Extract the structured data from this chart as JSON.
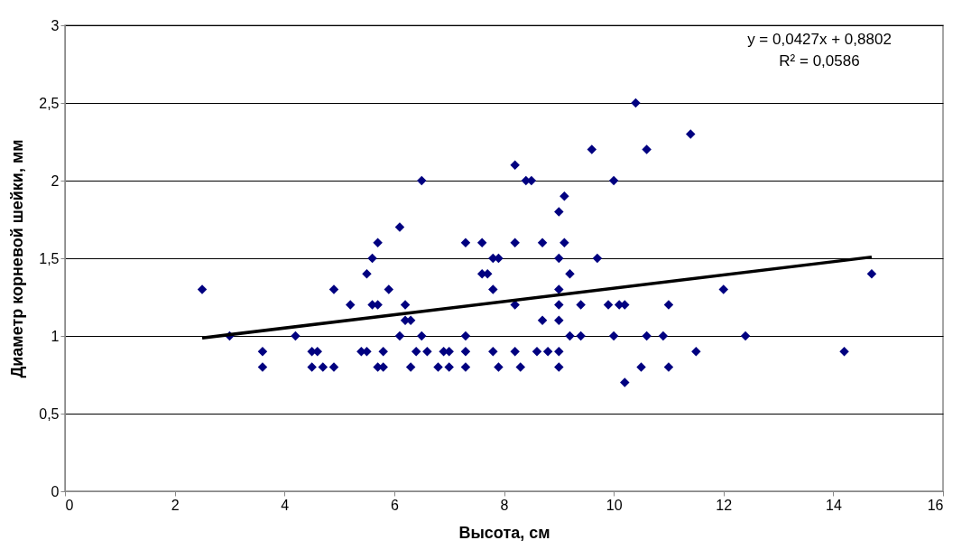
{
  "chart_data": {
    "type": "scatter",
    "xlabel": "Высота, см",
    "ylabel": "Диаметр корневой шейки, мм",
    "xlim": [
      0,
      16
    ],
    "xticks": [
      0,
      2,
      4,
      6,
      8,
      10,
      12,
      14,
      16
    ],
    "ylim": [
      0,
      3
    ],
    "yticks": [
      0,
      {
        "value": 0.5,
        "label": "0,5"
      },
      1,
      {
        "value": 1.5,
        "label": "1,5"
      },
      2,
      {
        "value": 2.5,
        "label": "2,5"
      },
      3
    ],
    "grid": "y",
    "annotations": [
      "y = 0,0427x + 0,8802",
      "R² = 0,0586"
    ],
    "series": [
      {
        "color": "#000080",
        "marker": "diamond",
        "x": [
          2.5,
          3.0,
          3.6,
          3.6,
          4.2,
          4.5,
          4.6,
          4.5,
          4.7,
          4.9,
          4.9,
          5.2,
          5.4,
          5.5,
          5.5,
          5.6,
          5.6,
          5.7,
          5.7,
          5.7,
          5.8,
          5.8,
          5.9,
          6.1,
          6.1,
          6.2,
          6.2,
          6.3,
          6.3,
          6.4,
          6.5,
          6.5,
          6.6,
          6.8,
          6.9,
          7.0,
          7.0,
          7.3,
          7.3,
          7.3,
          7.3,
          7.6,
          7.6,
          7.7,
          7.8,
          7.8,
          7.8,
          7.9,
          7.9,
          8.2,
          8.2,
          8.2,
          8.2,
          8.3,
          8.4,
          8.5,
          8.6,
          8.7,
          8.7,
          8.8,
          9.0,
          9.0,
          9.0,
          9.0,
          9.0,
          9.0,
          9.0,
          9.1,
          9.1,
          9.2,
          9.2,
          9.4,
          9.4,
          9.6,
          9.7,
          9.9,
          10.0,
          10.0,
          10.1,
          10.2,
          10.2,
          10.4,
          10.5,
          10.6,
          10.6,
          10.9,
          11.0,
          11.0,
          11.4,
          11.5,
          12.0,
          12.4,
          14.2,
          14.7
        ],
        "values": [
          1.3,
          1.0,
          0.9,
          0.8,
          1.0,
          0.9,
          0.9,
          0.8,
          0.8,
          0.8,
          1.3,
          1.2,
          0.9,
          0.9,
          1.4,
          1.5,
          1.2,
          1.6,
          1.2,
          0.8,
          0.9,
          0.8,
          1.3,
          1.7,
          1.0,
          1.2,
          1.1,
          1.1,
          0.8,
          0.9,
          2.0,
          1.0,
          0.9,
          0.8,
          0.9,
          0.9,
          0.8,
          1.6,
          1.0,
          0.9,
          0.8,
          1.6,
          1.4,
          1.4,
          1.5,
          1.3,
          0.9,
          1.5,
          0.8,
          2.1,
          1.6,
          1.2,
          0.9,
          0.8,
          2.0,
          2.0,
          0.9,
          1.6,
          1.1,
          0.9,
          1.8,
          1.5,
          1.3,
          1.2,
          1.1,
          0.9,
          0.8,
          1.9,
          1.6,
          1.4,
          1.0,
          1.2,
          1.0,
          2.2,
          1.5,
          1.2,
          2.0,
          1.0,
          1.2,
          1.2,
          0.7,
          2.5,
          0.8,
          2.2,
          1.0,
          1.0,
          1.2,
          0.8,
          2.3,
          0.9,
          1.3,
          1.0,
          0.9,
          1.4
        ]
      },
      {
        "type": "line",
        "color": "#000000",
        "marker": "none",
        "x": [
          2.5,
          14.7
        ],
        "values": [
          0.987,
          1.508
        ]
      }
    ]
  }
}
